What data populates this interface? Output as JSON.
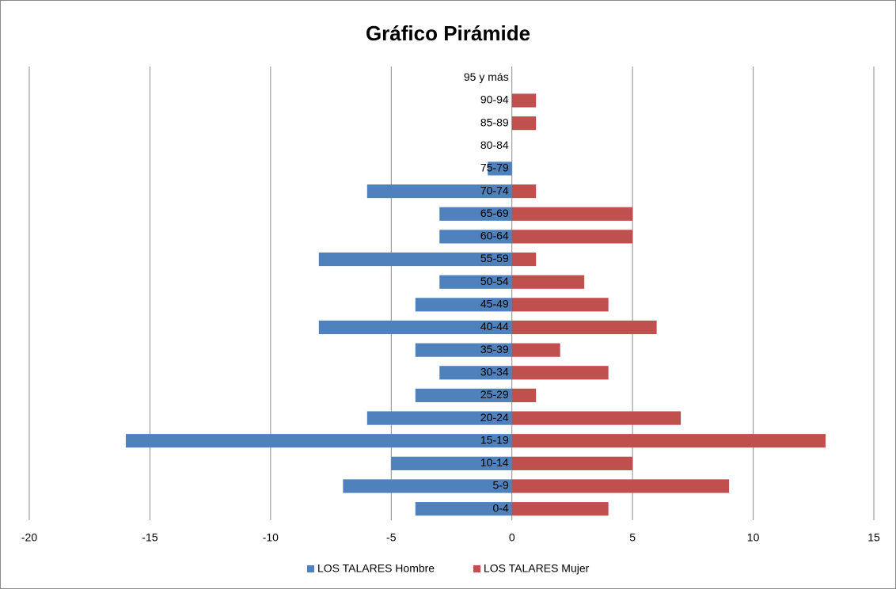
{
  "chart_data": {
    "type": "bar",
    "orientation": "horizontal",
    "title": "Gráfico Pirámide",
    "categories": [
      "95 y más",
      "90-94",
      "85-89",
      "80-84",
      "75-79",
      "70-74",
      "65-69",
      "60-64",
      "55-59",
      "50-54",
      "45-49",
      "40-44",
      "35-39",
      "30-34",
      "25-29",
      "20-24",
      "15-19",
      "10-14",
      "5-9",
      "0-4"
    ],
    "series": [
      {
        "name": "LOS TALARES Hombre",
        "color": "#4f81bd",
        "values": [
          0,
          0,
          0,
          0,
          -1,
          -6,
          -3,
          -3,
          -8,
          -3,
          -4,
          -8,
          -4,
          -3,
          -4,
          -6,
          -16,
          -5,
          -7,
          -4
        ]
      },
      {
        "name": "LOS TALARES Mujer",
        "color": "#c0504d",
        "values": [
          0,
          1,
          1,
          0,
          0,
          1,
          5,
          5,
          1,
          3,
          4,
          6,
          2,
          4,
          1,
          7,
          13,
          5,
          9,
          4
        ]
      }
    ],
    "xlim": [
      -20,
      15
    ],
    "xticks": [
      -20,
      -15,
      -10,
      -5,
      0,
      5,
      10,
      15
    ],
    "grid": true,
    "legend": "bottom"
  }
}
